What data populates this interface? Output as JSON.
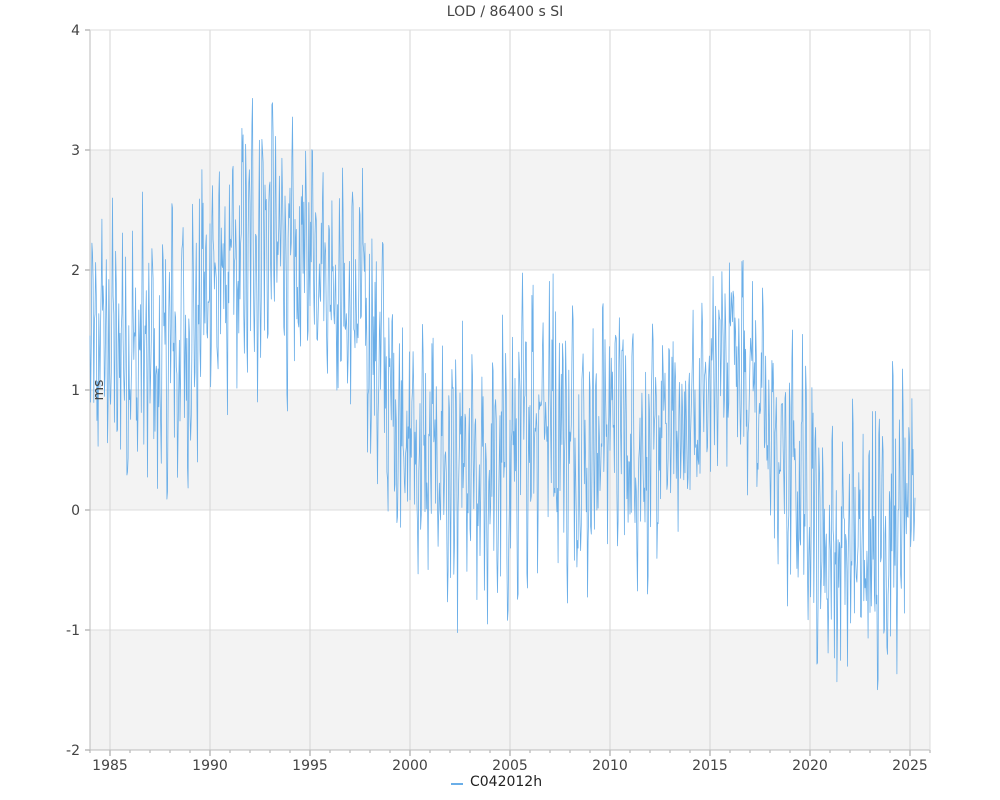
{
  "chart_data": {
    "type": "line",
    "title": "LOD / 86400 s SI",
    "xlabel": "",
    "ylabel": "ms",
    "xlim": [
      1984.0,
      2026.0
    ],
    "ylim": [
      -2,
      4
    ],
    "x_ticks": [
      1985,
      1990,
      1995,
      2000,
      2005,
      2010,
      2015,
      2020,
      2025
    ],
    "y_ticks": [
      -2,
      -1,
      0,
      1,
      2,
      3,
      4
    ],
    "grid": true,
    "legend": "bottom-center",
    "series": [
      {
        "name": "C042012h",
        "color": "#6aaee8",
        "envelope_note_free": true,
        "x": [
          1984.0,
          1984.5,
          1985.0,
          1985.5,
          1986.0,
          1986.5,
          1987.0,
          1987.5,
          1988.0,
          1988.5,
          1989.0,
          1989.5,
          1990.0,
          1990.5,
          1991.0,
          1991.5,
          1992.0,
          1992.5,
          1993.0,
          1993.5,
          1994.0,
          1994.5,
          1995.0,
          1995.5,
          1996.0,
          1996.5,
          1997.0,
          1997.5,
          1998.0,
          1998.5,
          1999.0,
          1999.5,
          2000.0,
          2000.5,
          2001.0,
          2001.5,
          2002.0,
          2002.5,
          2003.0,
          2003.5,
          2004.0,
          2004.5,
          2005.0,
          2005.5,
          2006.0,
          2006.5,
          2007.0,
          2007.5,
          2008.0,
          2008.5,
          2009.0,
          2009.5,
          2010.0,
          2010.5,
          2011.0,
          2011.5,
          2012.0,
          2012.5,
          2013.0,
          2013.5,
          2014.0,
          2014.5,
          2015.0,
          2015.5,
          2016.0,
          2016.5,
          2017.0,
          2017.5,
          2018.0,
          2018.5,
          2019.0,
          2019.5,
          2020.0,
          2020.5,
          2021.0,
          2021.5,
          2022.0,
          2022.5,
          2023.0,
          2023.5,
          2024.0,
          2024.5,
          2025.0,
          2025.25
        ],
        "max": [
          2.2,
          2.8,
          2.6,
          2.6,
          2.3,
          2.7,
          2.5,
          2.3,
          2.8,
          2.8,
          2.6,
          2.9,
          3.3,
          3.2,
          3.0,
          3.3,
          3.6,
          3.5,
          3.5,
          3.4,
          3.3,
          3.2,
          3.3,
          3.0,
          2.9,
          2.9,
          2.7,
          3.0,
          2.6,
          2.6,
          2.0,
          1.9,
          1.7,
          1.6,
          1.7,
          1.6,
          1.5,
          1.6,
          1.5,
          1.3,
          1.4,
          1.6,
          1.7,
          1.9,
          2.2,
          2.3,
          2.3,
          2.0,
          1.9,
          1.8,
          1.7,
          1.9,
          2.1,
          1.9,
          1.7,
          1.6,
          1.5,
          1.7,
          1.8,
          1.7,
          1.8,
          2.0,
          2.0,
          2.3,
          2.5,
          2.4,
          2.2,
          1.9,
          1.7,
          1.5,
          1.5,
          1.5,
          1.6,
          1.0,
          0.8,
          0.7,
          0.9,
          1.0,
          1.1,
          1.3,
          1.3,
          1.2,
          1.1,
          1.0
        ],
        "min": [
          0.4,
          0.1,
          0.2,
          0.1,
          0.2,
          0.0,
          0.1,
          -0.1,
          0.0,
          -0.1,
          0.1,
          0.5,
          0.7,
          0.6,
          0.8,
          0.8,
          0.9,
          0.9,
          1.3,
          1.2,
          0.7,
          0.9,
          1.2,
          1.3,
          1.0,
          0.8,
          0.6,
          0.8,
          0.1,
          0.1,
          -0.2,
          -0.4,
          -0.5,
          -0.7,
          -0.8,
          -0.8,
          -1.0,
          -1.1,
          -1.0,
          -1.1,
          -0.9,
          -1.0,
          -1.1,
          -0.8,
          -0.6,
          -0.5,
          -0.4,
          -0.7,
          -0.8,
          -0.7,
          -0.8,
          -0.6,
          -0.3,
          -0.4,
          -0.6,
          -0.7,
          -0.7,
          -0.5,
          -0.3,
          -0.4,
          -0.4,
          -0.2,
          0.0,
          0.2,
          0.3,
          0.2,
          0.1,
          0.0,
          -0.4,
          -0.7,
          -0.9,
          -1.0,
          -1.2,
          -1.5,
          -1.4,
          -1.6,
          -1.5,
          -1.4,
          -1.5,
          -1.6,
          -1.6,
          -1.5,
          -0.9,
          -0.7
        ]
      }
    ]
  }
}
